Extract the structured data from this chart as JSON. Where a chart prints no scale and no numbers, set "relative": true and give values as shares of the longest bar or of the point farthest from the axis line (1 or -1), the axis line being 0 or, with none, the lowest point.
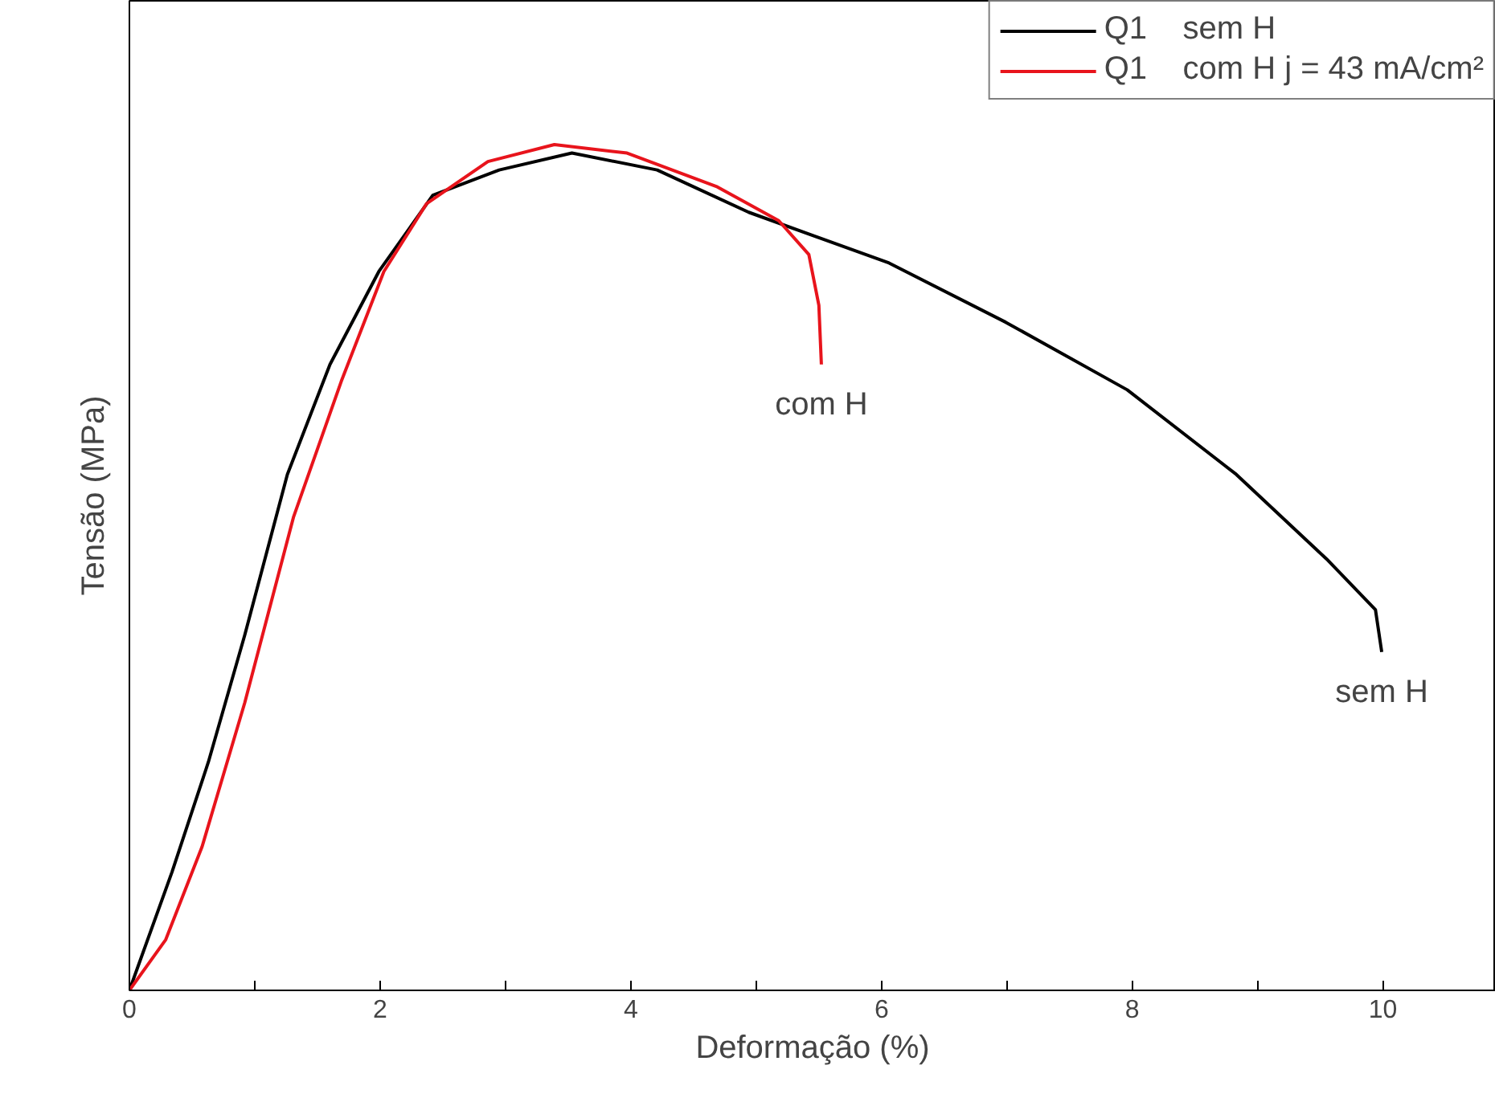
{
  "chart_data": {
    "type": "line",
    "relative": true,
    "xlabel": "Deformação (%)",
    "ylabel": "Tensão (MPa)",
    "xlim": [
      0,
      10.9
    ],
    "xticks": [
      0,
      {
        "value": 1,
        "label": null
      },
      2,
      {
        "value": 3,
        "label": null
      },
      4,
      {
        "value": 5,
        "label": null
      },
      6,
      {
        "value": 7,
        "label": null
      },
      8,
      {
        "value": 9,
        "label": null
      },
      10
    ],
    "grid": false,
    "legend": "top right",
    "line_style": "solid",
    "marker": "none",
    "series": [
      {
        "name": "Q1    sem H",
        "color": "#000000",
        "x": [
          0,
          0.34,
          0.63,
          0.92,
          1.26,
          1.6,
          1.99,
          2.42,
          2.95,
          3.53,
          4.21,
          4.94,
          6.06,
          6.99,
          7.96,
          8.83,
          9.55,
          9.94,
          9.99
        ],
        "values": [
          0,
          0.14,
          0.27,
          0.42,
          0.61,
          0.74,
          0.85,
          0.94,
          0.97,
          0.99,
          0.97,
          0.92,
          0.86,
          0.79,
          0.71,
          0.61,
          0.51,
          0.45,
          0.4
        ]
      },
      {
        "name": "Q1    com H j = 43 mA/cm²",
        "color": "#e8141c",
        "x": [
          0,
          0.29,
          0.58,
          0.92,
          1.31,
          1.69,
          2.03,
          2.37,
          2.86,
          3.39,
          3.97,
          4.69,
          5.18,
          5.42,
          5.5,
          5.52
        ],
        "values": [
          0,
          0.06,
          0.17,
          0.34,
          0.56,
          0.72,
          0.85,
          0.93,
          0.98,
          1,
          0.99,
          0.95,
          0.91,
          0.87,
          0.81,
          0.74
        ]
      }
    ],
    "annotations": [
      "sem H",
      "com H"
    ]
  }
}
